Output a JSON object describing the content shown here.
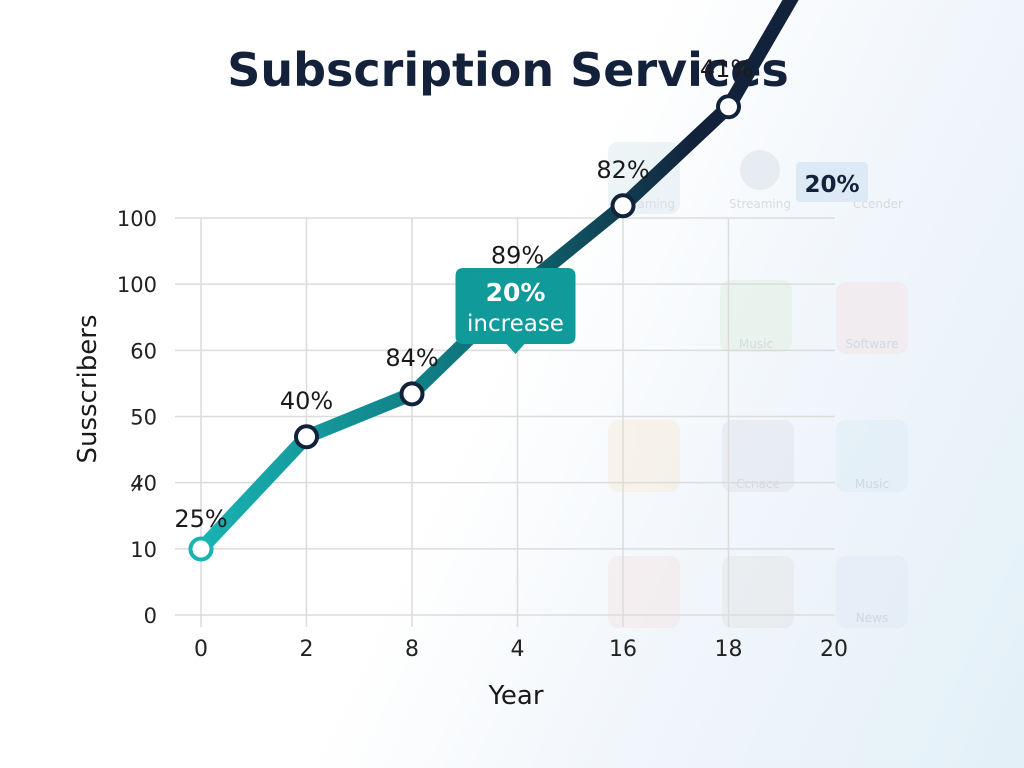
{
  "chart_data": {
    "type": "line",
    "title": "Subscription Services",
    "xlabel": "Year",
    "ylabel": "Susscribers",
    "x_tick_labels": [
      "0",
      "2",
      "8",
      "4",
      "16",
      "18",
      "20"
    ],
    "y_tick_labels": [
      "0",
      "10",
      "4̷0",
      "50",
      "60",
      "100",
      "100"
    ],
    "grid": true,
    "series": [
      {
        "points": [
          {
            "x": "0",
            "y": 10,
            "label": "25%"
          },
          {
            "x": "2",
            "y": 27,
            "label": "40%"
          },
          {
            "x": "8",
            "y": 33.5,
            "label": "84%"
          },
          {
            "x": "4",
            "y": 49,
            "label": "89%"
          },
          {
            "x": "16",
            "y": 62,
            "label": "82%"
          },
          {
            "x": "18",
            "y": 77,
            "label": "41%"
          }
        ],
        "arrow_end": {
          "x": "20",
          "y": 105
        },
        "colors": [
          "#19b3b3",
          "#0e6e76",
          "#12223b"
        ]
      }
    ],
    "annotations": [
      {
        "type": "callout",
        "line1": "20%",
        "line2": "increase",
        "point_index": 3,
        "color": "#119a9a"
      },
      {
        "type": "arrow-badge",
        "text": "20%"
      }
    ]
  },
  "background_tiles": [
    "Streaming",
    "Streaming",
    "Ccender",
    "Music",
    "Software",
    "Ccnace",
    "Music",
    "News"
  ],
  "colors": {
    "grid": "#dcdcdc",
    "title": "#14213a",
    "callout": "#119a9a",
    "marker_fill": "#ffffff",
    "marker_stroke": "#12223b"
  }
}
